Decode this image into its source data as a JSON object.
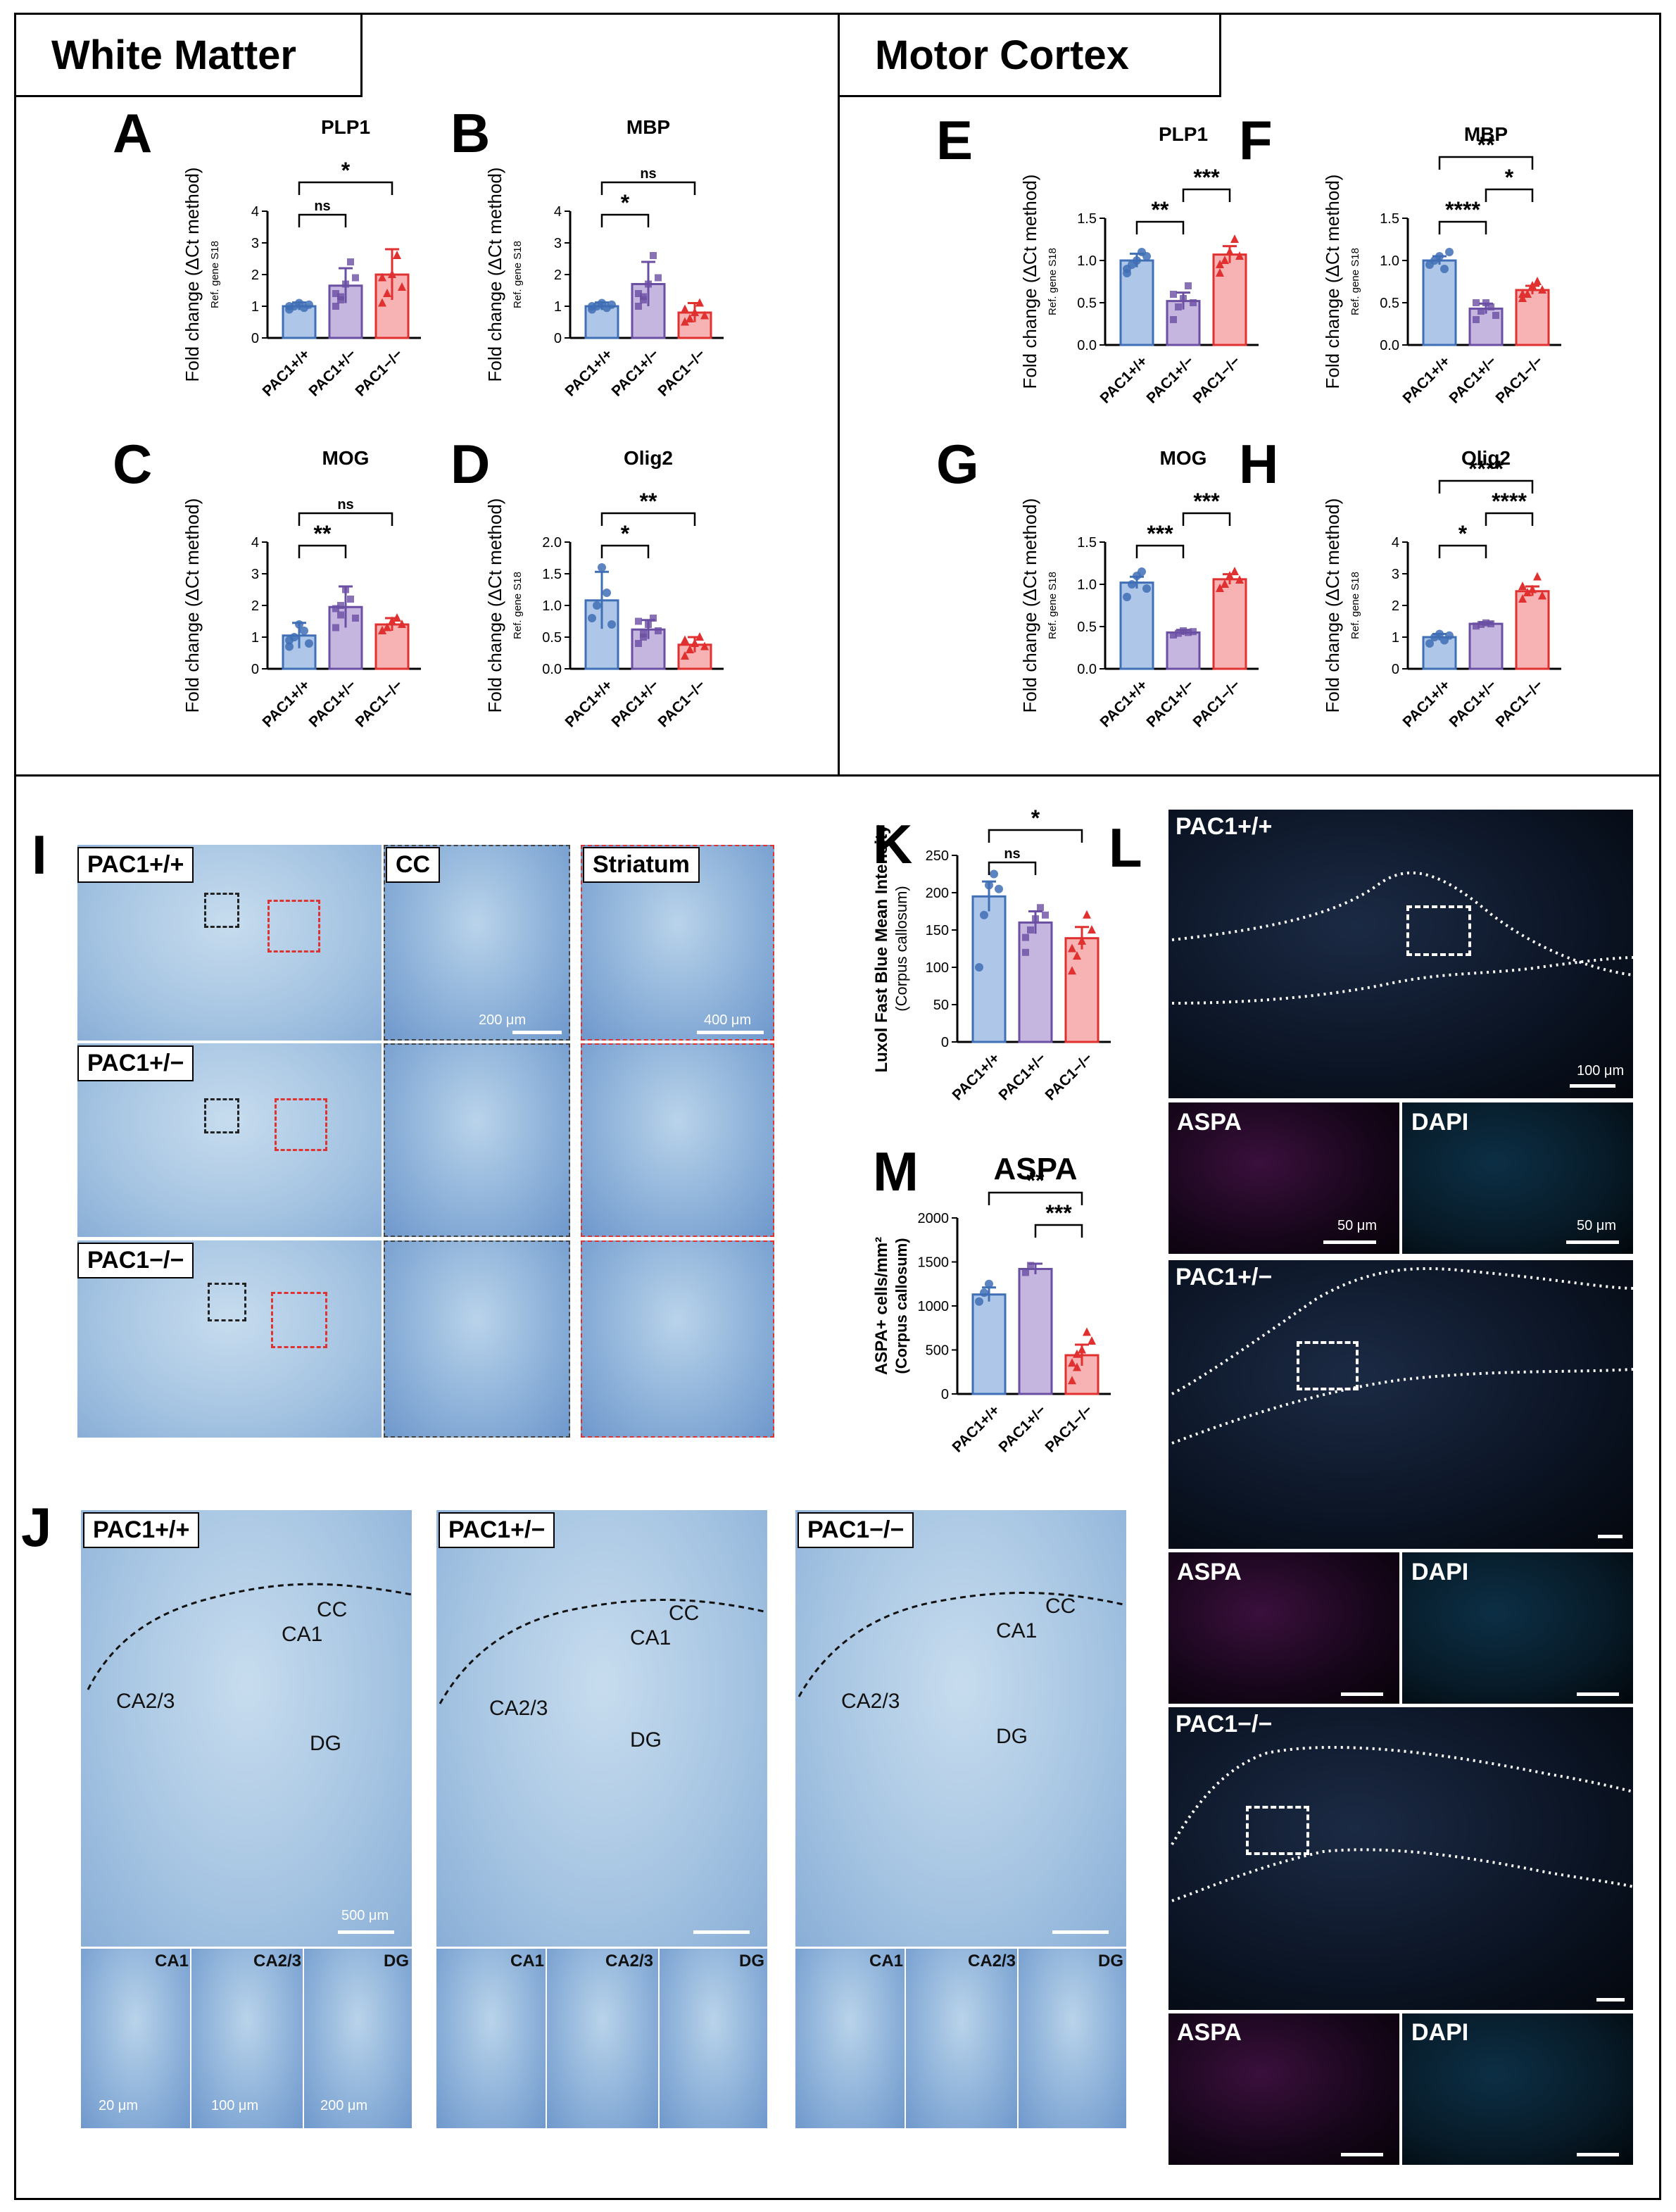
{
  "sections": {
    "white_matter": "White Matter",
    "motor_cortex": "Motor Cortex"
  },
  "panel_letters": {
    "A": "A",
    "B": "B",
    "C": "C",
    "D": "D",
    "E": "E",
    "F": "F",
    "G": "G",
    "H": "H",
    "I": "I",
    "J": "J",
    "K": "K",
    "L": "L",
    "M": "M"
  },
  "genotypes": [
    "PAC1+/+",
    "PAC1+/−",
    "PAC1−/−"
  ],
  "colors": {
    "wt": "#aec7e8",
    "het": "#c5b6e0",
    "ko": "#f7b3b3",
    "wt_edge": "#3f6fb5",
    "het_edge": "#6a4fa3",
    "ko_edge": "#e03030"
  },
  "chart_data": [
    {
      "panel": "A",
      "type": "bar",
      "title": "PLP1",
      "ylabel": "Fold change (ΔCt method)",
      "ylabel_sub": "Ref. gene S18",
      "ylim": [
        0,
        4
      ],
      "yticks": [
        "0",
        "1",
        "2",
        "3",
        "4"
      ],
      "series": [
        {
          "values": [
            1.0,
            1.65,
            2.0
          ],
          "errors": [
            0.12,
            0.55,
            0.8
          ]
        }
      ],
      "points": [
        [
          0.9,
          1.0,
          1.1,
          0.95,
          1.05,
          1.0
        ],
        [
          1.0,
          1.3,
          1.7,
          2.4,
          1.9,
          1.4,
          1.2
        ],
        [
          1.1,
          1.4,
          2.0,
          2.6,
          1.6,
          1.9
        ]
      ],
      "sig": [
        {
          "a": 0,
          "b": 1,
          "label": "ns",
          "level": 1
        },
        {
          "a": 0,
          "b": 2,
          "label": "*",
          "level": 2
        }
      ]
    },
    {
      "panel": "B",
      "type": "bar",
      "title": "MBP",
      "ylabel": "Fold change (ΔCt method)",
      "ylabel_sub": "Ref. gene S18",
      "ylim": [
        0,
        4
      ],
      "yticks": [
        "0",
        "1",
        "2",
        "3",
        "4"
      ],
      "series": [
        {
          "values": [
            1.0,
            1.7,
            0.8
          ],
          "errors": [
            0.12,
            0.7,
            0.3
          ]
        }
      ],
      "points": [
        [
          0.9,
          1.0,
          1.1,
          0.95,
          1.05,
          1.0
        ],
        [
          1.0,
          1.3,
          1.7,
          2.6,
          1.9,
          1.4,
          1.2
        ],
        [
          0.5,
          0.6,
          0.8,
          1.1,
          0.7,
          0.9
        ]
      ],
      "sig": [
        {
          "a": 0,
          "b": 1,
          "label": "*",
          "level": 1
        },
        {
          "a": 0,
          "b": 2,
          "label": "ns",
          "level": 2
        }
      ]
    },
    {
      "panel": "C",
      "type": "bar",
      "title": "MOG",
      "ylabel": "Fold change (ΔCt method)",
      "ylabel_sub": "",
      "ylim": [
        0,
        4
      ],
      "yticks": [
        "0",
        "1",
        "2",
        "3",
        "4"
      ],
      "series": [
        {
          "values": [
            1.05,
            1.95,
            1.4
          ],
          "errors": [
            0.4,
            0.65,
            0.2
          ]
        }
      ],
      "points": [
        [
          0.7,
          1.0,
          1.4,
          1.2,
          0.8,
          0.9
        ],
        [
          1.3,
          1.7,
          2.5,
          2.2,
          1.6,
          1.9,
          2.0
        ],
        [
          1.2,
          1.3,
          1.5,
          1.6,
          1.4,
          1.2
        ]
      ],
      "sig": [
        {
          "a": 0,
          "b": 1,
          "label": "**",
          "level": 1
        },
        {
          "a": 0,
          "b": 2,
          "label": "ns",
          "level": 2
        }
      ]
    },
    {
      "panel": "D",
      "type": "bar",
      "title": "Olig2",
      "ylabel": "Fold change (ΔCt method)",
      "ylabel_sub": "Ref. gene S18",
      "ylim": [
        0,
        2.0
      ],
      "yticks": [
        "0.0",
        "0.5",
        "1.0",
        "1.5",
        "2.0"
      ],
      "series": [
        {
          "values": [
            1.08,
            0.62,
            0.38
          ],
          "errors": [
            0.45,
            0.15,
            0.12
          ]
        }
      ],
      "points": [
        [
          0.8,
          1.0,
          1.6,
          1.2,
          0.7
        ],
        [
          0.4,
          0.5,
          0.7,
          0.8,
          0.6,
          0.75,
          0.55
        ],
        [
          0.2,
          0.3,
          0.4,
          0.5,
          0.35,
          0.45
        ]
      ],
      "sig": [
        {
          "a": 0,
          "b": 1,
          "label": "*",
          "level": 1
        },
        {
          "a": 0,
          "b": 2,
          "label": "**",
          "level": 2
        }
      ]
    },
    {
      "panel": "E",
      "type": "bar",
      "title": "PLP1",
      "ylabel": "Fold change (ΔCt method)",
      "ylabel_sub": "Ref. gene S18",
      "ylim": [
        0,
        1.5
      ],
      "yticks": [
        "0.0",
        "0.5",
        "1.0",
        "1.5"
      ],
      "series": [
        {
          "values": [
            1.0,
            0.52,
            1.07
          ],
          "errors": [
            0.08,
            0.1,
            0.1
          ]
        }
      ],
      "points": [
        [
          0.85,
          0.95,
          1.0,
          1.1,
          1.05,
          0.9
        ],
        [
          0.3,
          0.45,
          0.55,
          0.7,
          0.5,
          0.6
        ],
        [
          0.85,
          1.0,
          1.1,
          1.25,
          1.05,
          0.95
        ]
      ],
      "sig": [
        {
          "a": 0,
          "b": 1,
          "label": "**",
          "level": 1
        },
        {
          "a": 1,
          "b": 2,
          "label": "***",
          "level": 2
        }
      ]
    },
    {
      "panel": "F",
      "type": "bar",
      "title": "MBP",
      "ylabel": "Fold change (ΔCt method)",
      "ylabel_sub": "Ref. gene S18",
      "ylim": [
        0,
        1.5
      ],
      "yticks": [
        "0.0",
        "0.5",
        "1.0",
        "1.5"
      ],
      "series": [
        {
          "values": [
            1.0,
            0.43,
            0.65
          ],
          "errors": [
            0.05,
            0.06,
            0.05
          ]
        }
      ],
      "points": [
        [
          0.95,
          1.0,
          1.05,
          0.9,
          1.1
        ],
        [
          0.3,
          0.4,
          0.5,
          0.45,
          0.35,
          0.5
        ],
        [
          0.55,
          0.6,
          0.7,
          0.75,
          0.65,
          0.6
        ]
      ],
      "sig": [
        {
          "a": 0,
          "b": 1,
          "label": "****",
          "level": 1
        },
        {
          "a": 1,
          "b": 2,
          "label": "*",
          "level": 2
        },
        {
          "a": 0,
          "b": 2,
          "label": "**",
          "level": 3
        }
      ]
    },
    {
      "panel": "G",
      "type": "bar",
      "title": "MOG",
      "ylabel": "Fold change (ΔCt method)",
      "ylabel_sub": "Ref. gene S18",
      "ylim": [
        0,
        1.5
      ],
      "yticks": [
        "0.0",
        "0.5",
        "1.0",
        "1.5"
      ],
      "series": [
        {
          "values": [
            1.02,
            0.43,
            1.06
          ],
          "errors": [
            0.07,
            0.03,
            0.06
          ]
        }
      ],
      "points": [
        [
          0.85,
          1.0,
          1.1,
          1.15,
          0.95
        ],
        [
          0.4,
          0.42,
          0.45,
          0.43,
          0.44
        ],
        [
          0.95,
          1.0,
          1.1,
          1.15,
          1.05
        ]
      ],
      "sig": [
        {
          "a": 0,
          "b": 1,
          "label": "***",
          "level": 1
        },
        {
          "a": 1,
          "b": 2,
          "label": "***",
          "level": 2
        }
      ]
    },
    {
      "panel": "H",
      "type": "bar",
      "title": "Olig2",
      "ylabel": "Fold change (ΔCt method)",
      "ylabel_sub": "Ref. gene S18",
      "ylim": [
        0,
        4
      ],
      "yticks": [
        "0",
        "1",
        "2",
        "3",
        "4"
      ],
      "series": [
        {
          "values": [
            1.0,
            1.42,
            2.45
          ],
          "errors": [
            0.1,
            0.05,
            0.15
          ]
        }
      ],
      "points": [
        [
          0.8,
          1.0,
          1.1,
          0.9,
          1.05
        ],
        [
          1.35,
          1.4,
          1.45,
          1.42
        ],
        [
          2.2,
          2.4,
          2.5,
          2.9,
          2.3,
          2.6
        ]
      ],
      "sig": [
        {
          "a": 0,
          "b": 1,
          "label": "*",
          "level": 1
        },
        {
          "a": 1,
          "b": 2,
          "label": "****",
          "level": 2
        },
        {
          "a": 0,
          "b": 2,
          "label": "****",
          "level": 3
        }
      ]
    },
    {
      "panel": "K",
      "type": "bar",
      "title": "",
      "ylabel": "Luxol Fast Blue Mean Intensity",
      "ylabel_sub": "(Corpus callosum)",
      "ylim": [
        0,
        250
      ],
      "yticks": [
        "0",
        "50",
        "100",
        "150",
        "200",
        "250"
      ],
      "series": [
        {
          "values": [
            195,
            160,
            139
          ],
          "errors": [
            20,
            15,
            15
          ]
        }
      ],
      "points": [
        [
          100,
          170,
          210,
          225,
          205
        ],
        [
          120,
          150,
          165,
          180,
          170,
          140
        ],
        [
          95,
          115,
          135,
          170,
          150,
          125
        ]
      ],
      "sig": [
        {
          "a": 0,
          "b": 1,
          "label": "ns",
          "level": 1
        },
        {
          "a": 0,
          "b": 2,
          "label": "*",
          "level": 2
        }
      ]
    },
    {
      "panel": "M",
      "type": "bar",
      "title": "ASPA",
      "ylabel": "ASPA+ cells/mm²",
      "ylabel_sub": "(Corpus callosum)",
      "ylim": [
        0,
        2000
      ],
      "yticks": [
        "0",
        "500",
        "1000",
        "1500",
        "2000"
      ],
      "series": [
        {
          "values": [
            1130,
            1420,
            440
          ],
          "errors": [
            80,
            60,
            120
          ]
        }
      ],
      "points": [
        [
          1050,
          1150,
          1250
        ],
        [
          1380,
          1460
        ],
        [
          150,
          300,
          500,
          700,
          600,
          350,
          450
        ]
      ],
      "sig": [
        {
          "a": 1,
          "b": 2,
          "label": "***",
          "level": 1
        },
        {
          "a": 0,
          "b": 2,
          "label": "**",
          "level": 2
        }
      ]
    }
  ],
  "panel_I": {
    "rows": [
      "PAC1+/+",
      "PAC1+/−",
      "PAC1−/−"
    ],
    "col_cc": "CC",
    "col_striatum": "Striatum",
    "scale_cc": "200 μm",
    "scale_striatum": "400 μm"
  },
  "panel_J": {
    "columns": [
      "PAC1+/+",
      "PAC1+/−",
      "PAC1−/−"
    ],
    "regions": [
      "CC",
      "CA1",
      "CA2/3",
      "DG"
    ],
    "scale_main": "500 μm",
    "insets": [
      "CA1",
      "CA2/3",
      "DG"
    ],
    "scale_insets": [
      "20 μm",
      "100 μm",
      "200 μm"
    ]
  },
  "panel_L": {
    "rows": [
      "PAC1+/+",
      "PAC1+/−",
      "PAC1−/−"
    ],
    "stain_aspa": "ASPA",
    "stain_dapi": "DAPI",
    "scale_main": "100 μm",
    "scale_small": "50 μm"
  }
}
